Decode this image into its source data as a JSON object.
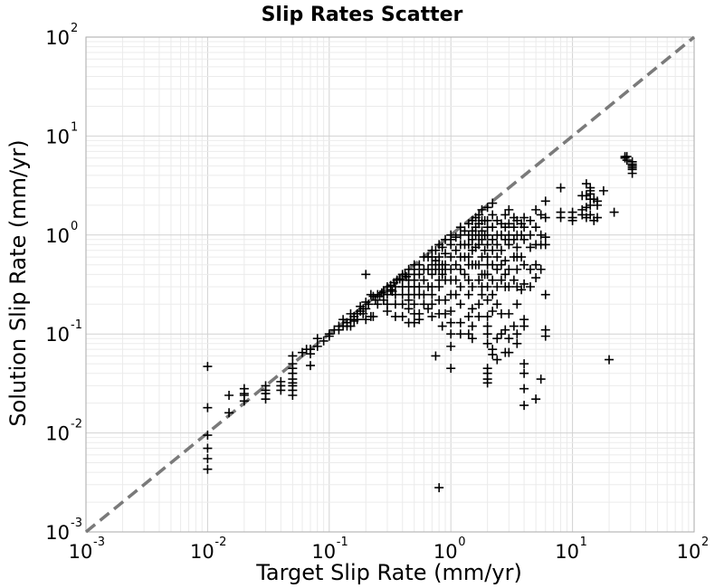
{
  "chart_data": {
    "type": "scatter",
    "title": "Slip Rates Scatter",
    "xlabel": "Target Slip Rate (mm/yr)",
    "ylabel": "Solution Slip Rate (mm/yr)",
    "xscale": "log",
    "yscale": "log",
    "xlim": [
      0.001,
      100
    ],
    "ylim": [
      0.001,
      100
    ],
    "grid": true,
    "marker": "plus",
    "marker_color": "#000000",
    "reference_line": {
      "style": "dashed",
      "color": "#7a7a7a",
      "x": [
        0.001,
        100
      ],
      "y": [
        0.001,
        100
      ]
    },
    "x_ticks": [
      {
        "base": "10",
        "exp": "-3"
      },
      {
        "base": "10",
        "exp": "-2"
      },
      {
        "base": "10",
        "exp": "-1"
      },
      {
        "base": "10",
        "exp": "0"
      },
      {
        "base": "10",
        "exp": "1"
      },
      {
        "base": "10",
        "exp": "2"
      }
    ],
    "y_ticks": [
      {
        "base": "10",
        "exp": "-3"
      },
      {
        "base": "10",
        "exp": "-2"
      },
      {
        "base": "10",
        "exp": "-1"
      },
      {
        "base": "10",
        "exp": "0"
      },
      {
        "base": "10",
        "exp": "1"
      },
      {
        "base": "10",
        "exp": "2"
      }
    ],
    "points": [
      [
        0.01,
        0.047
      ],
      [
        0.01,
        0.018
      ],
      [
        0.01,
        0.0095
      ],
      [
        0.01,
        0.007
      ],
      [
        0.01,
        0.0055
      ],
      [
        0.01,
        0.0043
      ],
      [
        0.015,
        0.024
      ],
      [
        0.015,
        0.016
      ],
      [
        0.02,
        0.028
      ],
      [
        0.02,
        0.025
      ],
      [
        0.02,
        0.024
      ],
      [
        0.02,
        0.021
      ],
      [
        0.03,
        0.03
      ],
      [
        0.03,
        0.027
      ],
      [
        0.03,
        0.025
      ],
      [
        0.03,
        0.022
      ],
      [
        0.04,
        0.033
      ],
      [
        0.04,
        0.03
      ],
      [
        0.04,
        0.027
      ],
      [
        0.05,
        0.06
      ],
      [
        0.05,
        0.05
      ],
      [
        0.05,
        0.045
      ],
      [
        0.05,
        0.04
      ],
      [
        0.05,
        0.035
      ],
      [
        0.05,
        0.032
      ],
      [
        0.05,
        0.03
      ],
      [
        0.05,
        0.027
      ],
      [
        0.05,
        0.024
      ],
      [
        0.07,
        0.048
      ],
      [
        0.06,
        0.065
      ],
      [
        0.07,
        0.07
      ],
      [
        0.065,
        0.07
      ],
      [
        0.07,
        0.063
      ],
      [
        0.08,
        0.075
      ],
      [
        0.08,
        0.09
      ],
      [
        0.09,
        0.085
      ],
      [
        0.1,
        0.1
      ],
      [
        0.1,
        0.095
      ],
      [
        0.11,
        0.11
      ],
      [
        0.12,
        0.11
      ],
      [
        0.12,
        0.12
      ],
      [
        0.13,
        0.12
      ],
      [
        0.13,
        0.14
      ],
      [
        0.14,
        0.13
      ],
      [
        0.15,
        0.14
      ],
      [
        0.15,
        0.16
      ],
      [
        0.16,
        0.15
      ],
      [
        0.17,
        0.16
      ],
      [
        0.18,
        0.17
      ],
      [
        0.18,
        0.19
      ],
      [
        0.19,
        0.18
      ],
      [
        0.2,
        0.18
      ],
      [
        0.2,
        0.21
      ],
      [
        0.21,
        0.2
      ],
      [
        0.16,
        0.135
      ],
      [
        0.15,
        0.12
      ],
      [
        0.14,
        0.12
      ],
      [
        0.17,
        0.14
      ],
      [
        0.19,
        0.16
      ],
      [
        0.2,
        0.14
      ],
      [
        0.22,
        0.15
      ],
      [
        0.23,
        0.15
      ],
      [
        0.2,
        0.4
      ],
      [
        0.22,
        0.25
      ],
      [
        0.23,
        0.24
      ],
      [
        0.24,
        0.22
      ],
      [
        0.25,
        0.25
      ],
      [
        0.26,
        0.24
      ],
      [
        0.25,
        0.2
      ],
      [
        0.27,
        0.26
      ],
      [
        0.28,
        0.27
      ],
      [
        0.28,
        0.22
      ],
      [
        0.3,
        0.3
      ],
      [
        0.3,
        0.25
      ],
      [
        0.3,
        0.2
      ],
      [
        0.3,
        0.17
      ],
      [
        0.32,
        0.31
      ],
      [
        0.32,
        0.28
      ],
      [
        0.33,
        0.27
      ],
      [
        0.34,
        0.33
      ],
      [
        0.35,
        0.3
      ],
      [
        0.35,
        0.25
      ],
      [
        0.35,
        0.2
      ],
      [
        0.35,
        0.15
      ],
      [
        0.36,
        0.35
      ],
      [
        0.38,
        0.36
      ],
      [
        0.4,
        0.4
      ],
      [
        0.4,
        0.35
      ],
      [
        0.4,
        0.3
      ],
      [
        0.4,
        0.25
      ],
      [
        0.4,
        0.2
      ],
      [
        0.4,
        0.15
      ],
      [
        0.42,
        0.4
      ],
      [
        0.43,
        0.38
      ],
      [
        0.45,
        0.45
      ],
      [
        0.45,
        0.4
      ],
      [
        0.45,
        0.35
      ],
      [
        0.45,
        0.3
      ],
      [
        0.45,
        0.25
      ],
      [
        0.45,
        0.22
      ],
      [
        0.45,
        0.18
      ],
      [
        0.45,
        0.13
      ],
      [
        0.5,
        0.5
      ],
      [
        0.5,
        0.45
      ],
      [
        0.5,
        0.4
      ],
      [
        0.5,
        0.35
      ],
      [
        0.5,
        0.3
      ],
      [
        0.5,
        0.25
      ],
      [
        0.5,
        0.2
      ],
      [
        0.5,
        0.16
      ],
      [
        0.5,
        0.13
      ],
      [
        0.55,
        0.5
      ],
      [
        0.55,
        0.4
      ],
      [
        0.55,
        0.3
      ],
      [
        0.55,
        0.25
      ],
      [
        0.55,
        0.16
      ],
      [
        0.55,
        0.14
      ],
      [
        0.6,
        0.6
      ],
      [
        0.6,
        0.45
      ],
      [
        0.6,
        0.35
      ],
      [
        0.6,
        0.25
      ],
      [
        0.6,
        0.2
      ],
      [
        0.65,
        0.6
      ],
      [
        0.65,
        0.45
      ],
      [
        0.65,
        0.3
      ],
      [
        0.65,
        0.18
      ],
      [
        0.7,
        0.7
      ],
      [
        0.7,
        0.6
      ],
      [
        0.7,
        0.5
      ],
      [
        0.7,
        0.4
      ],
      [
        0.7,
        0.3
      ],
      [
        0.7,
        0.25
      ],
      [
        0.7,
        0.2
      ],
      [
        0.7,
        0.15
      ],
      [
        0.75,
        0.7
      ],
      [
        0.75,
        0.55
      ],
      [
        0.75,
        0.45
      ],
      [
        0.75,
        0.06
      ],
      [
        0.8,
        0.8
      ],
      [
        0.8,
        0.6
      ],
      [
        0.8,
        0.5
      ],
      [
        0.8,
        0.45
      ],
      [
        0.8,
        0.35
      ],
      [
        0.8,
        0.3
      ],
      [
        0.8,
        0.22
      ],
      [
        0.8,
        0.16
      ],
      [
        0.8,
        0.0028
      ],
      [
        0.85,
        0.75
      ],
      [
        0.85,
        0.5
      ],
      [
        0.85,
        0.4
      ],
      [
        0.85,
        0.12
      ],
      [
        0.9,
        0.9
      ],
      [
        0.9,
        0.65
      ],
      [
        0.9,
        0.5
      ],
      [
        0.9,
        0.45
      ],
      [
        0.9,
        0.35
      ],
      [
        0.9,
        0.22
      ],
      [
        0.9,
        0.16
      ],
      [
        1.0,
        1.0
      ],
      [
        1.0,
        0.9
      ],
      [
        1.0,
        0.8
      ],
      [
        1.0,
        0.6
      ],
      [
        1.0,
        0.45
      ],
      [
        1.0,
        0.35
      ],
      [
        1.0,
        0.25
      ],
      [
        1.0,
        0.17
      ],
      [
        1.0,
        0.13
      ],
      [
        1.0,
        0.1
      ],
      [
        1.0,
        0.075
      ],
      [
        1.0,
        0.045
      ],
      [
        1.1,
        0.95
      ],
      [
        1.1,
        0.7
      ],
      [
        1.1,
        0.5
      ],
      [
        1.1,
        0.35
      ],
      [
        1.1,
        0.25
      ],
      [
        1.2,
        1.2
      ],
      [
        1.2,
        1.0
      ],
      [
        1.2,
        0.8
      ],
      [
        1.2,
        0.6
      ],
      [
        1.2,
        0.45
      ],
      [
        1.2,
        0.3
      ],
      [
        1.2,
        0.2
      ],
      [
        1.2,
        0.13
      ],
      [
        1.2,
        0.1
      ],
      [
        1.3,
        1.1
      ],
      [
        1.3,
        0.8
      ],
      [
        1.3,
        0.6
      ],
      [
        1.3,
        0.4
      ],
      [
        1.4,
        1.3
      ],
      [
        1.4,
        1.0
      ],
      [
        1.4,
        0.8
      ],
      [
        1.4,
        0.6
      ],
      [
        1.4,
        0.5
      ],
      [
        1.4,
        0.35
      ],
      [
        1.4,
        0.25
      ],
      [
        1.4,
        0.15
      ],
      [
        1.4,
        0.1
      ],
      [
        1.5,
        1.4
      ],
      [
        1.5,
        1.1
      ],
      [
        1.5,
        0.9
      ],
      [
        1.5,
        0.7
      ],
      [
        1.5,
        0.5
      ],
      [
        1.5,
        0.3
      ],
      [
        1.5,
        0.18
      ],
      [
        1.5,
        0.12
      ],
      [
        1.5,
        0.09
      ],
      [
        1.6,
        1.5
      ],
      [
        1.6,
        1.2
      ],
      [
        1.6,
        1.0
      ],
      [
        1.6,
        0.75
      ],
      [
        1.6,
        0.5
      ],
      [
        1.7,
        1.6
      ],
      [
        1.7,
        1.3
      ],
      [
        1.7,
        1.0
      ],
      [
        1.7,
        0.8
      ],
      [
        1.7,
        0.5
      ],
      [
        1.7,
        0.35
      ],
      [
        1.7,
        0.2
      ],
      [
        1.7,
        0.15
      ],
      [
        1.8,
        1.8
      ],
      [
        1.8,
        1.4
      ],
      [
        1.8,
        1.1
      ],
      [
        1.8,
        0.9
      ],
      [
        1.8,
        0.6
      ],
      [
        1.8,
        0.4
      ],
      [
        1.8,
        0.3
      ],
      [
        1.8,
        0.25
      ],
      [
        1.9,
        1.4
      ],
      [
        1.9,
        1.0
      ],
      [
        1.9,
        0.7
      ],
      [
        1.9,
        0.4
      ],
      [
        2.0,
        1.9
      ],
      [
        2.0,
        1.4
      ],
      [
        2.0,
        1.2
      ],
      [
        2.0,
        1.0
      ],
      [
        2.0,
        0.8
      ],
      [
        2.0,
        0.6
      ],
      [
        2.0,
        0.5
      ],
      [
        2.0,
        0.4
      ],
      [
        2.0,
        0.3
      ],
      [
        2.0,
        0.22
      ],
      [
        2.0,
        0.15
      ],
      [
        2.0,
        0.12
      ],
      [
        2.0,
        0.1
      ],
      [
        2.0,
        0.08
      ],
      [
        2.0,
        0.045
      ],
      [
        2.0,
        0.04
      ],
      [
        2.0,
        0.035
      ],
      [
        2.0,
        0.032
      ],
      [
        2.2,
        2.1
      ],
      [
        2.2,
        1.6
      ],
      [
        2.2,
        1.2
      ],
      [
        2.2,
        0.9
      ],
      [
        2.2,
        0.7
      ],
      [
        2.2,
        0.5
      ],
      [
        2.2,
        0.35
      ],
      [
        2.2,
        0.25
      ],
      [
        2.2,
        0.17
      ],
      [
        2.2,
        0.07
      ],
      [
        2.2,
        0.062
      ],
      [
        2.4,
        1.4
      ],
      [
        2.4,
        1.0
      ],
      [
        2.4,
        0.8
      ],
      [
        2.4,
        0.6
      ],
      [
        2.4,
        0.45
      ],
      [
        2.4,
        0.3
      ],
      [
        2.4,
        0.2
      ],
      [
        2.4,
        0.09
      ],
      [
        2.4,
        0.055
      ],
      [
        2.6,
        1.3
      ],
      [
        2.6,
        1.0
      ],
      [
        2.6,
        0.7
      ],
      [
        2.6,
        0.5
      ],
      [
        2.6,
        0.35
      ],
      [
        2.6,
        0.16
      ],
      [
        2.6,
        0.1
      ],
      [
        2.8,
        1.6
      ],
      [
        2.8,
        1.2
      ],
      [
        2.8,
        0.9
      ],
      [
        2.8,
        0.55
      ],
      [
        2.8,
        0.4
      ],
      [
        2.8,
        0.3
      ],
      [
        2.8,
        0.11
      ],
      [
        2.8,
        0.065
      ],
      [
        3.0,
        1.8
      ],
      [
        3.0,
        1.3
      ],
      [
        3.0,
        1.0
      ],
      [
        3.0,
        0.8
      ],
      [
        3.0,
        0.45
      ],
      [
        3.0,
        0.3
      ],
      [
        3.0,
        0.16
      ],
      [
        3.0,
        0.09
      ],
      [
        3.0,
        0.065
      ],
      [
        3.3,
        1.5
      ],
      [
        3.3,
        1.2
      ],
      [
        3.3,
        0.9
      ],
      [
        3.3,
        0.6
      ],
      [
        3.3,
        0.35
      ],
      [
        3.3,
        0.12
      ],
      [
        3.5,
        1.4
      ],
      [
        3.5,
        1.0
      ],
      [
        3.5,
        0.75
      ],
      [
        3.5,
        0.6
      ],
      [
        3.5,
        0.45
      ],
      [
        3.5,
        0.3
      ],
      [
        3.5,
        0.2
      ],
      [
        3.5,
        0.1
      ],
      [
        3.5,
        0.08
      ],
      [
        3.8,
        1.3
      ],
      [
        3.8,
        1.0
      ],
      [
        3.8,
        0.6
      ],
      [
        3.8,
        0.28
      ],
      [
        4.0,
        1.5
      ],
      [
        4.0,
        1.2
      ],
      [
        4.0,
        0.9
      ],
      [
        4.0,
        0.5
      ],
      [
        4.0,
        0.32
      ],
      [
        4.0,
        0.14
      ],
      [
        4.0,
        0.12
      ],
      [
        4.0,
        0.05
      ],
      [
        4.0,
        0.04
      ],
      [
        4.0,
        0.028
      ],
      [
        4.0,
        0.019
      ],
      [
        4.5,
        1.4
      ],
      [
        4.5,
        1.0
      ],
      [
        4.5,
        0.75
      ],
      [
        4.5,
        0.45
      ],
      [
        4.5,
        0.3
      ],
      [
        5.0,
        1.8
      ],
      [
        5.0,
        1.2
      ],
      [
        5.0,
        0.8
      ],
      [
        5.0,
        0.5
      ],
      [
        5.0,
        0.37
      ],
      [
        5.0,
        0.022
      ],
      [
        5.5,
        1.6
      ],
      [
        5.5,
        1.0
      ],
      [
        5.5,
        0.8
      ],
      [
        5.5,
        0.45
      ],
      [
        5.5,
        0.035
      ],
      [
        6.0,
        2.2
      ],
      [
        6.0,
        1.5
      ],
      [
        6.0,
        0.95
      ],
      [
        6.0,
        0.8
      ],
      [
        6.0,
        0.25
      ],
      [
        6.0,
        0.11
      ],
      [
        6.0,
        0.095
      ],
      [
        8.0,
        3.0
      ],
      [
        8.0,
        1.7
      ],
      [
        8.0,
        1.5
      ],
      [
        10.0,
        1.7
      ],
      [
        10.0,
        1.5
      ],
      [
        10.0,
        1.4
      ],
      [
        12.0,
        2.5
      ],
      [
        12.0,
        1.8
      ],
      [
        12.0,
        1.6
      ],
      [
        13.0,
        3.3
      ],
      [
        13.0,
        2.5
      ],
      [
        13.0,
        1.9
      ],
      [
        13.0,
        1.5
      ],
      [
        14.0,
        3.0
      ],
      [
        14.0,
        2.8
      ],
      [
        14.0,
        2.6
      ],
      [
        14.0,
        2.3
      ],
      [
        14.0,
        2.0
      ],
      [
        14.0,
        1.6
      ],
      [
        15.0,
        2.3
      ],
      [
        15.0,
        1.4
      ],
      [
        16.0,
        2.2
      ],
      [
        16.0,
        2.0
      ],
      [
        16.0,
        1.5
      ],
      [
        18.0,
        2.8
      ],
      [
        22.0,
        1.7
      ],
      [
        20.0,
        0.055
      ],
      [
        27.0,
        6.2
      ],
      [
        27.0,
        6.0
      ],
      [
        28.0,
        6.2
      ],
      [
        28.0,
        5.7
      ],
      [
        31.0,
        5.5
      ],
      [
        31.0,
        5.2
      ],
      [
        31.0,
        5.0
      ],
      [
        31.0,
        4.8
      ],
      [
        31.0,
        4.6
      ],
      [
        31.0,
        4.2
      ]
    ]
  }
}
